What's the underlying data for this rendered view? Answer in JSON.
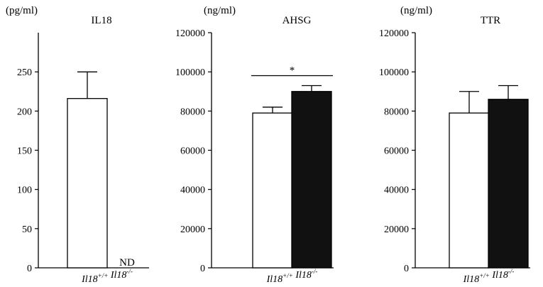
{
  "chart_data": [
    {
      "type": "bar",
      "title": "IL18",
      "ylabel": "(pg/ml)",
      "ylim": [
        0,
        300
      ],
      "yticks": [
        0,
        50,
        100,
        150,
        200,
        250
      ],
      "tick_labels": [
        "0",
        "50",
        "100",
        "150",
        "200",
        "250"
      ],
      "categories": [
        {
          "base": "Il18",
          "sup": "+/+"
        },
        {
          "base": "Il18",
          "sup": "-/-"
        }
      ],
      "values": [
        216,
        null
      ],
      "errors": [
        34,
        null
      ],
      "fills": [
        "#ffffff",
        "#111111"
      ],
      "bar_annotations": [
        "",
        "ND"
      ],
      "significance": null
    },
    {
      "type": "bar",
      "title": "AHSG",
      "ylabel": "(ng/ml)",
      "ylim": [
        0,
        120000
      ],
      "yticks": [
        0,
        20000,
        40000,
        60000,
        80000,
        100000,
        120000
      ],
      "tick_labels": [
        "0",
        "20000",
        "40000",
        "60000",
        "80000",
        "100000",
        "120000"
      ],
      "categories": [
        {
          "base": "Il18",
          "sup": "+/+"
        },
        {
          "base": "Il18",
          "sup": "-/-"
        }
      ],
      "values": [
        79000,
        90000
      ],
      "errors": [
        3000,
        3000
      ],
      "fills": [
        "#ffffff",
        "#111111"
      ],
      "bar_annotations": [
        "",
        ""
      ],
      "significance": {
        "label": "*"
      }
    },
    {
      "type": "bar",
      "title": "TTR",
      "ylabel": "(ng/ml)",
      "ylim": [
        0,
        120000
      ],
      "yticks": [
        0,
        20000,
        40000,
        60000,
        80000,
        100000,
        120000
      ],
      "tick_labels": [
        "0",
        "20000",
        "40000",
        "60000",
        "80000",
        "100000",
        "120000"
      ],
      "categories": [
        {
          "base": "Il18",
          "sup": "+/+"
        },
        {
          "base": "Il18",
          "sup": "-/-"
        }
      ],
      "values": [
        79000,
        86000
      ],
      "errors": [
        11000,
        7000
      ],
      "fills": [
        "#ffffff",
        "#111111"
      ],
      "bar_annotations": [
        "",
        ""
      ],
      "significance": null
    }
  ]
}
